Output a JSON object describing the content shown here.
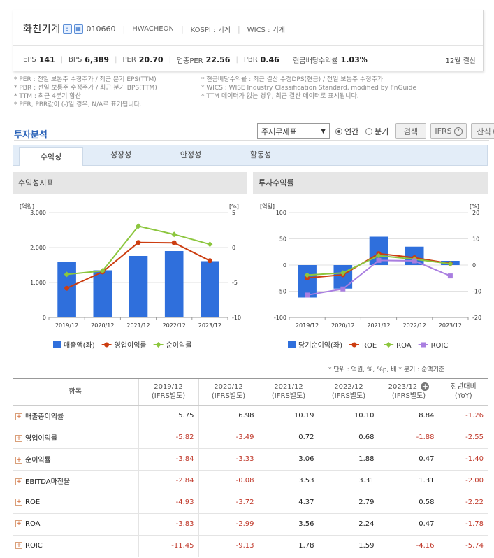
{
  "header": {
    "company_name": "화천기계",
    "icon1": "house-icon",
    "icon2": "building-icon",
    "code": "010660",
    "english_name": "HWACHEON",
    "market": "KOSPI : 기계",
    "wics": "WICS : 기계",
    "metrics": [
      {
        "label": "EPS",
        "value": "141"
      },
      {
        "label": "BPS",
        "value": "6,389"
      },
      {
        "label": "PER",
        "value": "20.70"
      },
      {
        "label": "업종PER",
        "value": "22.56"
      },
      {
        "label": "PBR",
        "value": "0.46"
      },
      {
        "label": "현금배당수익률",
        "value": "1.03%"
      }
    ],
    "settlement": "12월 결산"
  },
  "notes": {
    "left": [
      "* PER : 전일 보통주 수정주가 / 최근 분기 EPS(TTM)",
      "* PBR : 전일 보통주 수정주가 / 최근 분기 BPS(TTM)",
      "* TTM : 최근 4분기 합산",
      "* PER, PBR값이 (-)일 경우, N/A로 표기됩니다."
    ],
    "right": [
      "* 현금배당수익률 : 최근 결산 수정DPS(현금) / 전일 보통주 수정주가",
      "* WICS : WISE Industry Classification Standard, modified by FnGuide",
      "* TTM 데이터가 없는 경우, 최근 결산 데이터로 표시됩니다."
    ]
  },
  "section": {
    "title": "투자분석",
    "select_value": "주재무제표",
    "radio_annual": "연간",
    "radio_quarter": "분기",
    "search_button": "검색",
    "ifrs_button": "IFRS",
    "formula_button": "산식"
  },
  "tabs": [
    "수익성",
    "성장성",
    "안정성",
    "활동성"
  ],
  "panels": {
    "left_title": "수익성지표",
    "right_title": "투자수익률"
  },
  "chart_data": [
    {
      "type": "bar",
      "title": "수익성지표",
      "categories": [
        "2019/12",
        "2020/12",
        "2021/12",
        "2022/12",
        "2023/12"
      ],
      "left_axis": {
        "unit": "[억원]",
        "ylim": [
          0,
          3000
        ],
        "ticks": [
          "0",
          "1,000",
          "2,000",
          "3,000"
        ]
      },
      "right_axis": {
        "unit": "[%]",
        "ylim": [
          -10,
          5
        ],
        "ticks": [
          "-10",
          "-5",
          "0",
          "5"
        ]
      },
      "series": [
        {
          "name": "매출액(좌)",
          "type": "bar",
          "axis": "left",
          "color": "#2f6fdc",
          "values": [
            1600,
            1350,
            1760,
            1900,
            1610
          ]
        },
        {
          "name": "영업이익률",
          "type": "line",
          "axis": "right",
          "color": "#cc3d10",
          "values": [
            -5.82,
            -3.49,
            0.72,
            0.68,
            -1.88
          ]
        },
        {
          "name": "순이익률",
          "type": "line",
          "axis": "right",
          "color": "#8cc63e",
          "values": [
            -3.84,
            -3.33,
            3.06,
            1.88,
            0.47
          ]
        }
      ],
      "grid": true,
      "legend": "bottom"
    },
    {
      "type": "bar",
      "title": "투자수익률",
      "categories": [
        "2019/12",
        "2020/12",
        "2021/12",
        "2022/12",
        "2023/12"
      ],
      "left_axis": {
        "unit": "[억원]",
        "ylim": [
          -100,
          100
        ],
        "ticks": [
          "-100",
          "-50",
          "0",
          "50",
          "100"
        ]
      },
      "right_axis": {
        "unit": "[%]",
        "ylim": [
          -20,
          20
        ],
        "ticks": [
          "-20",
          "-10",
          "0",
          "10",
          "20"
        ]
      },
      "series": [
        {
          "name": "당기순이익(좌)",
          "type": "bar",
          "axis": "left",
          "color": "#2f6fdc",
          "values": [
            -62,
            -45,
            54,
            35,
            8
          ]
        },
        {
          "name": "ROE",
          "type": "line",
          "axis": "right",
          "color": "#cc3d10",
          "values": [
            -4.93,
            -3.72,
            4.37,
            2.79,
            0.58
          ]
        },
        {
          "name": "ROA",
          "type": "line",
          "axis": "right",
          "color": "#8cc63e",
          "values": [
            -3.83,
            -2.99,
            3.56,
            2.24,
            0.47
          ]
        },
        {
          "name": "ROIC",
          "type": "line",
          "axis": "right",
          "color": "#a97ee0",
          "values": [
            -11.45,
            -9.13,
            1.78,
            1.59,
            -4.16
          ]
        }
      ],
      "grid": true,
      "legend": "bottom"
    }
  ],
  "units_note": "* 단위 : 억원, %, %p, 배     * 분기 : 순액기준",
  "table": {
    "headers": [
      {
        "line1": "항목",
        "line2": ""
      },
      {
        "line1": "2019/12",
        "line2": "(IFRS별도)"
      },
      {
        "line1": "2020/12",
        "line2": "(IFRS별도)"
      },
      {
        "line1": "2021/12",
        "line2": "(IFRS별도)"
      },
      {
        "line1": "2022/12",
        "line2": "(IFRS별도)"
      },
      {
        "line1": "2023/12",
        "line2": "(IFRS별도)"
      },
      {
        "line1": "전년대비",
        "line2": "(YoY)"
      }
    ],
    "rows": [
      {
        "label": "매출총이익률",
        "values": [
          "5.75",
          "6.98",
          "10.19",
          "10.10",
          "8.84",
          "-1.26"
        ]
      },
      {
        "label": "영업이익률",
        "values": [
          "-5.82",
          "-3.49",
          "0.72",
          "0.68",
          "-1.88",
          "-2.55"
        ]
      },
      {
        "label": "순이익률",
        "values": [
          "-3.84",
          "-3.33",
          "3.06",
          "1.88",
          "0.47",
          "-1.40"
        ]
      },
      {
        "label": "EBITDA마진율",
        "values": [
          "-2.84",
          "-0.08",
          "3.53",
          "3.31",
          "1.31",
          "-2.00"
        ]
      },
      {
        "label": "ROE",
        "values": [
          "-4.93",
          "-3.72",
          "4.37",
          "2.79",
          "0.58",
          "-2.22"
        ]
      },
      {
        "label": "ROA",
        "values": [
          "-3.83",
          "-2.99",
          "3.56",
          "2.24",
          "0.47",
          "-1.78"
        ]
      },
      {
        "label": "ROIC",
        "values": [
          "-11.45",
          "-9.13",
          "1.78",
          "1.59",
          "-4.16",
          "-5.74"
        ]
      }
    ]
  }
}
